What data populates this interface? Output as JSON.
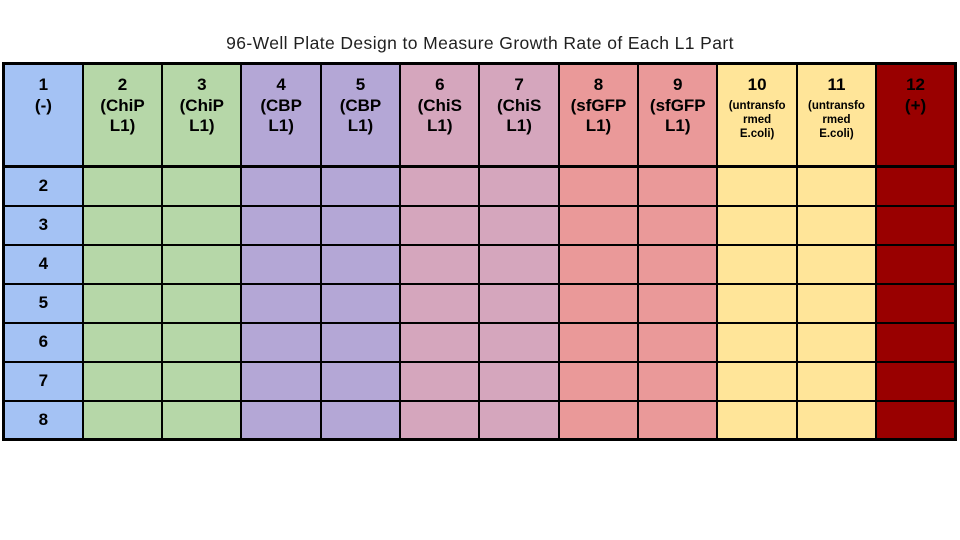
{
  "page": {
    "title": "96-Well Plate Design to Measure Growth Rate of Each L1 Part"
  },
  "palette": {
    "negative_control_blue": "#a4c2f4",
    "chip_green": "#b6d7a8",
    "cbp_purple": "#b4a7d6",
    "chis_mauve": "#d5a6bd",
    "sfgfp_salmon": "#ea9999",
    "untransformed_yellow": "#ffe599",
    "positive_control_dark_red": "#990000",
    "border": "#000000",
    "text": "#000000"
  },
  "plate": {
    "columns": [
      {
        "number": "1",
        "label": "(-)",
        "color": "#a4c2f4"
      },
      {
        "number": "2",
        "label": "(ChiP\nL1)",
        "color": "#b6d7a8"
      },
      {
        "number": "3",
        "label": "(ChiP\nL1)",
        "color": "#b6d7a8"
      },
      {
        "number": "4",
        "label": "(CBP\nL1)",
        "color": "#b4a7d6"
      },
      {
        "number": "5",
        "label": "(CBP\nL1)",
        "color": "#b4a7d6"
      },
      {
        "number": "6",
        "label": "(ChiS\nL1)",
        "color": "#d5a6bd"
      },
      {
        "number": "7",
        "label": "(ChiS\nL1)",
        "color": "#d5a6bd"
      },
      {
        "number": "8",
        "label": "(sfGFP\nL1)",
        "color": "#ea9999"
      },
      {
        "number": "9",
        "label": "(sfGFP\nL1)",
        "color": "#ea9999"
      },
      {
        "number": "10",
        "label": "(untransfo\nrmed\nE.coli)",
        "color": "#ffe599"
      },
      {
        "number": "11",
        "label": "(untransfo\nrmed\nE.coli)",
        "color": "#ffe599"
      },
      {
        "number": "12",
        "label": "(+)",
        "color": "#990000"
      }
    ],
    "row_labels": [
      "2",
      "3",
      "4",
      "5",
      "6",
      "7",
      "8"
    ]
  }
}
